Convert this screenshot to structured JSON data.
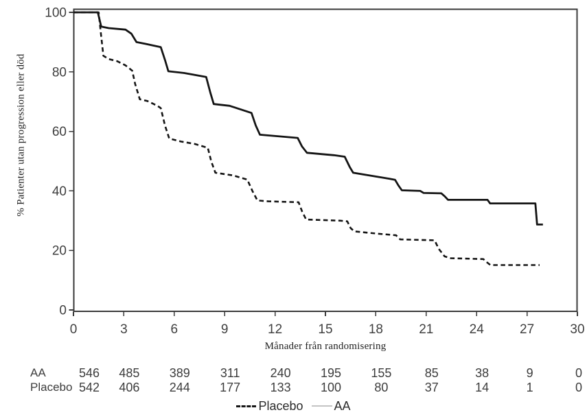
{
  "chart_data": {
    "type": "line",
    "subtype": "kaplan-meier-step",
    "title": "",
    "xlabel": "Månader från randomisering",
    "ylabel": "% Patienter utan progression eller död",
    "xlim": [
      0,
      30
    ],
    "ylim": [
      0,
      100
    ],
    "xticks": [
      0,
      3,
      6,
      9,
      12,
      15,
      18,
      21,
      24,
      27,
      30
    ],
    "yticks": [
      0,
      20,
      40,
      60,
      80,
      100
    ],
    "grid": false,
    "plot_border": true,
    "legend_position": "bottom-center",
    "colors": {
      "curve": "#141414",
      "axis": "#3a3a3a",
      "tick_text": "#3f3f3f",
      "legend_aa_sample": "#c4c4c4",
      "background": "#ffffff"
    },
    "series": [
      {
        "name": "Placebo",
        "line_style": "dashed",
        "color": "#141414",
        "points": [
          [
            0,
            100
          ],
          [
            1.5,
            100
          ],
          [
            1.63,
            93
          ],
          [
            1.78,
            85.4
          ],
          [
            2.1,
            84.3
          ],
          [
            2.6,
            83.6
          ],
          [
            3.1,
            82.2
          ],
          [
            3.5,
            80.4
          ],
          [
            3.67,
            76
          ],
          [
            3.95,
            70.8
          ],
          [
            4.4,
            70.2
          ],
          [
            5.0,
            68.6
          ],
          [
            5.2,
            67.8
          ],
          [
            5.45,
            62
          ],
          [
            5.7,
            57.6
          ],
          [
            6.4,
            56.6
          ],
          [
            7.2,
            55.8
          ],
          [
            8.0,
            54.5
          ],
          [
            8.2,
            50
          ],
          [
            8.45,
            46.1
          ],
          [
            9.5,
            45.2
          ],
          [
            10.35,
            43.8
          ],
          [
            10.65,
            40
          ],
          [
            10.95,
            36.8
          ],
          [
            11.6,
            36.5
          ],
          [
            13.4,
            36.2
          ],
          [
            13.62,
            33
          ],
          [
            13.85,
            30.4
          ],
          [
            15.9,
            30
          ],
          [
            16.3,
            29.8
          ],
          [
            16.5,
            27.5
          ],
          [
            16.72,
            26.4
          ],
          [
            18.0,
            25.7
          ],
          [
            19.2,
            25.1
          ],
          [
            19.45,
            23.7
          ],
          [
            21.5,
            23.4
          ],
          [
            21.75,
            20.5
          ],
          [
            22.1,
            18
          ],
          [
            22.45,
            17.4
          ],
          [
            24.4,
            17.1
          ],
          [
            24.62,
            16
          ],
          [
            24.82,
            15.1
          ],
          [
            27.75,
            15.1
          ]
        ]
      },
      {
        "name": "AA",
        "line_style": "solid",
        "color": "#141414",
        "points": [
          [
            0,
            100
          ],
          [
            1.45,
            100
          ],
          [
            1.65,
            95.2
          ],
          [
            2.1,
            94.7
          ],
          [
            3.1,
            94.2
          ],
          [
            3.45,
            92.8
          ],
          [
            3.75,
            90
          ],
          [
            4.3,
            89.4
          ],
          [
            5.2,
            88.3
          ],
          [
            5.45,
            84
          ],
          [
            5.65,
            80.2
          ],
          [
            6.6,
            79.6
          ],
          [
            7.9,
            78.3
          ],
          [
            8.15,
            73
          ],
          [
            8.35,
            69.2
          ],
          [
            9.3,
            68.6
          ],
          [
            10.6,
            66.2
          ],
          [
            10.85,
            62
          ],
          [
            11.1,
            58.9
          ],
          [
            13.35,
            57.8
          ],
          [
            13.6,
            55
          ],
          [
            13.9,
            52.8
          ],
          [
            15.5,
            52
          ],
          [
            16.15,
            51.5
          ],
          [
            16.45,
            48
          ],
          [
            16.65,
            46.1
          ],
          [
            17.6,
            45.2
          ],
          [
            18.8,
            44.1
          ],
          [
            19.15,
            43.7
          ],
          [
            19.35,
            41.8
          ],
          [
            19.55,
            40.2
          ],
          [
            20.65,
            40
          ],
          [
            20.85,
            39.3
          ],
          [
            21.9,
            39.2
          ],
          [
            22.1,
            38.2
          ],
          [
            22.3,
            37
          ],
          [
            24.65,
            37
          ],
          [
            24.8,
            35.8
          ],
          [
            27.5,
            35.8
          ],
          [
            27.6,
            28.7
          ],
          [
            27.95,
            28.7
          ]
        ]
      }
    ],
    "risk_table": {
      "months": [
        0,
        3,
        6,
        9,
        12,
        15,
        18,
        21,
        24,
        27,
        30
      ],
      "rows": [
        {
          "label": "AA",
          "values": [
            "546",
            "485",
            "389",
            "311",
            "240",
            "195",
            "155",
            "85",
            "38",
            "9",
            "0"
          ]
        },
        {
          "label": "Placebo",
          "values": [
            "542",
            "406",
            "244",
            "177",
            "133",
            "100",
            "80",
            "37",
            "14",
            "1",
            "0"
          ]
        }
      ]
    },
    "legend": [
      {
        "label": "Placebo",
        "line_style": "dashed",
        "sample_color": "#151515"
      },
      {
        "label": "AA",
        "line_style": "solid",
        "sample_color": "#c4c4c4"
      }
    ]
  }
}
